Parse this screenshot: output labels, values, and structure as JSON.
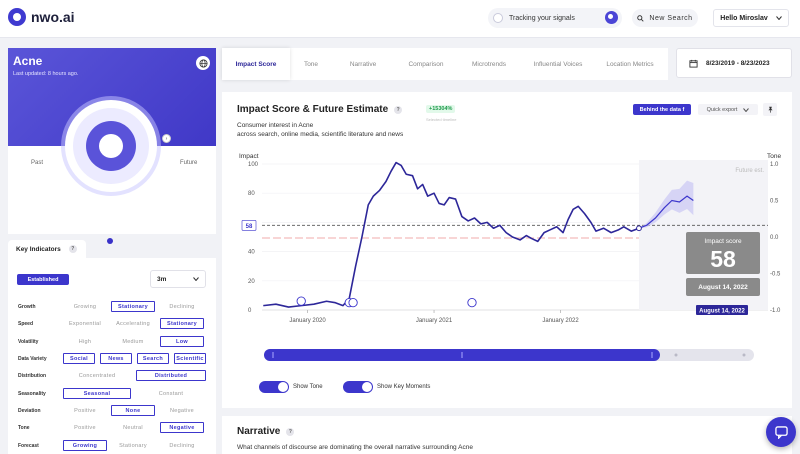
{
  "app": {
    "logo_text": "nwo.ai"
  },
  "header": {
    "tracking_label": "Tracking your signals",
    "new_search_label": "New Search",
    "user_label": "Hello Miroslav"
  },
  "topic_card": {
    "title": "Acne",
    "updated": "Last updated: 8 hours ago.",
    "past_label": "Past",
    "future_label": "Future"
  },
  "key_indicators": {
    "tab_label": "Key Indicators",
    "stage_label": "Established",
    "period_value": "3m",
    "rows": [
      {
        "label": "Growth",
        "options": [
          "Growing",
          "Stationary",
          "Declining"
        ],
        "selected": [
          1
        ]
      },
      {
        "label": "Speed",
        "options": [
          "Exponential",
          "Accelerating",
          "Stationary"
        ],
        "selected": [
          2
        ]
      },
      {
        "label": "Volatility",
        "options": [
          "High",
          "Medium",
          "Low"
        ],
        "selected": [
          2
        ]
      },
      {
        "label": "Data Variety",
        "options": [
          "Social",
          "News",
          "Search",
          "Scientific"
        ],
        "selected": [
          0,
          1,
          2,
          3
        ]
      },
      {
        "label": "Distribution",
        "options": [
          "Concentrated",
          "Distributed"
        ],
        "selected": [
          1
        ]
      },
      {
        "label": "Seasonality",
        "options": [
          "Seasonal",
          "Constant"
        ],
        "selected": [
          0
        ]
      },
      {
        "label": "Deviation",
        "options": [
          "Positive",
          "None",
          "Negative"
        ],
        "selected": [
          1
        ]
      },
      {
        "label": "Tone",
        "options": [
          "Positive",
          "Neutral",
          "Negative"
        ],
        "selected": [
          2
        ]
      },
      {
        "label": "Forecast",
        "options": [
          "Growing",
          "Stationary",
          "Declining"
        ],
        "selected": [
          0
        ]
      }
    ]
  },
  "tabs": [
    "Impact Score",
    "Tone",
    "Narrative",
    "Comparison",
    "Microtrends",
    "Influential Voices",
    "Location Metrics"
  ],
  "active_tab": "Impact Score",
  "date_range": "8/23/2019 - 8/23/2023",
  "chart_card": {
    "title": "Impact Score & Future Estimate",
    "subtitle_line1": "Consumer interest in Acne",
    "subtitle_line2": "across search, online media, scientific literature and news",
    "change_badge": "+15304%",
    "change_caption": "Selected timeline",
    "behind_label": "Behind the data",
    "quick_export_label": "Quick export",
    "toggle_tone_label": "Show Tone",
    "toggle_moments_label": "Show Key Moments"
  },
  "chart_data": {
    "type": "line",
    "ylabel": "Impact",
    "ylabel_right": "Tone",
    "ylim": [
      0,
      100
    ],
    "ylim_right": [
      -1.0,
      1.0
    ],
    "y_ticks": [
      "100",
      "80",
      "60",
      "40",
      "20",
      "0"
    ],
    "y_ticks_right": [
      "1.0",
      "0.5",
      "0.0",
      "-0.5",
      "-1.0"
    ],
    "x_ticks": [
      "January 2020",
      "January 2021",
      "January 2022"
    ],
    "x_tick_dates": [
      2020.0,
      2021.0,
      2022.0
    ],
    "xlim": [
      2019.64,
      2023.64
    ],
    "threshold_label": "58",
    "threshold_value": 58,
    "future_label": "Future est.",
    "future_start": 2022.62,
    "tooltip": {
      "title": "Impact score",
      "value": "58",
      "date": "August 14, 2022",
      "x_label": "August 14, 2022"
    },
    "series": [
      {
        "values": [
          [
            2019.65,
            3
          ],
          [
            2019.75,
            4
          ],
          [
            2019.85,
            2
          ],
          [
            2019.95,
            3
          ],
          [
            2020.05,
            4
          ],
          [
            2020.15,
            6
          ],
          [
            2020.22,
            5
          ],
          [
            2020.28,
            3
          ],
          [
            2020.33,
            8
          ],
          [
            2020.38,
            30
          ],
          [
            2020.43,
            50
          ],
          [
            2020.48,
            72
          ],
          [
            2020.52,
            78
          ],
          [
            2020.57,
            82
          ],
          [
            2020.62,
            88
          ],
          [
            2020.66,
            95
          ],
          [
            2020.7,
            101
          ],
          [
            2020.74,
            99
          ],
          [
            2020.78,
            93
          ],
          [
            2020.83,
            92
          ],
          [
            2020.87,
            83
          ],
          [
            2020.91,
            86
          ],
          [
            2020.95,
            78
          ],
          [
            2021.0,
            80
          ],
          [
            2021.04,
            73
          ],
          [
            2021.08,
            72
          ],
          [
            2021.12,
            77
          ],
          [
            2021.17,
            76
          ],
          [
            2021.22,
            64
          ],
          [
            2021.27,
            61
          ],
          [
            2021.32,
            63
          ],
          [
            2021.37,
            59
          ],
          [
            2021.42,
            60
          ],
          [
            2021.47,
            56
          ],
          [
            2021.52,
            58
          ],
          [
            2021.57,
            53
          ],
          [
            2021.62,
            50
          ],
          [
            2021.68,
            48
          ],
          [
            2021.73,
            51
          ],
          [
            2021.77,
            49
          ],
          [
            2021.82,
            47
          ],
          [
            2021.87,
            53
          ],
          [
            2021.92,
            55
          ],
          [
            2021.97,
            57
          ],
          [
            2022.02,
            53
          ],
          [
            2022.06,
            62
          ],
          [
            2022.1,
            69
          ],
          [
            2022.14,
            71
          ],
          [
            2022.19,
            66
          ],
          [
            2022.24,
            60
          ],
          [
            2022.28,
            54
          ],
          [
            2022.34,
            56
          ],
          [
            2022.4,
            53
          ],
          [
            2022.46,
            55
          ],
          [
            2022.5,
            57
          ],
          [
            2022.56,
            54
          ],
          [
            2022.62,
            56
          ]
        ]
      }
    ],
    "forecast": [
      [
        2022.62,
        56
      ],
      [
        2022.68,
        58
      ],
      [
        2022.75,
        63
      ],
      [
        2022.82,
        70
      ],
      [
        2022.88,
        75
      ],
      [
        2022.94,
        74
      ],
      [
        2023.0,
        78
      ],
      [
        2023.05,
        75
      ]
    ],
    "forecast_band": {
      "upper_offset": 12,
      "lower_offset": 10
    }
  },
  "narrative": {
    "title": "Narrative",
    "subtitle": "What channels of discourse are dominating the overall narrative surrounding Acne"
  },
  "colors": {
    "primary": "#3c36cc",
    "card_gradient_start": "#5a55d8",
    "positive_badge": "#1c9a4a"
  }
}
